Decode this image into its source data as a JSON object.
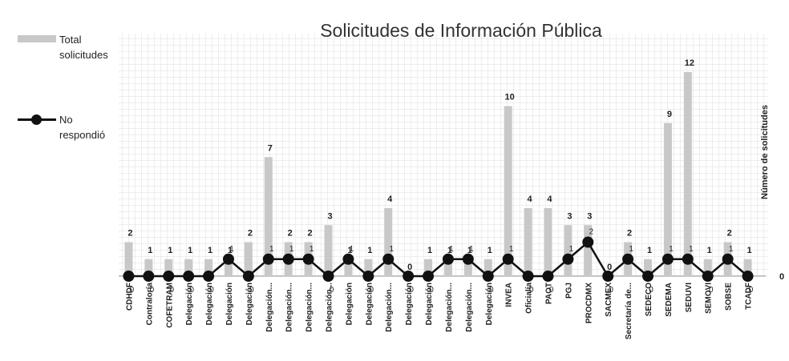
{
  "chart_data": {
    "type": "bar_line",
    "title": "Solicitudes de Información Pública",
    "y_label": "Número de solicitudes",
    "categories": [
      "CDHDF",
      "Contraloría",
      "COFETRAM",
      "Delegación",
      "Delegación",
      "Delegación",
      "Delegación",
      "Delegación...",
      "Delegación...",
      "Delegación...",
      "Delegación...",
      "Delegación",
      "Delegación",
      "Delegación...",
      "Delegación",
      "Delegación",
      "Delegación...",
      "Delegación...",
      "Delegación",
      "INVEA",
      "Oficialía",
      "PAOT",
      "PGJ",
      "PROCDMX",
      "SACMEX",
      "Secretaría de...",
      "SEDECO",
      "SEDEMA",
      "SEDUVI",
      "SEMOVI",
      "SOBSE",
      "TCADF"
    ],
    "series": [
      {
        "name": "Total solicitudes",
        "color": "#c8c8c8",
        "values": [
          2,
          1,
          1,
          1,
          1,
          1,
          2,
          7,
          2,
          2,
          3,
          1,
          1,
          4,
          0,
          1,
          1,
          1,
          1,
          10,
          4,
          4,
          3,
          3,
          0,
          2,
          1,
          9,
          12,
          1,
          2,
          1
        ]
      },
      {
        "name": "No respondió",
        "color": "#111111",
        "values": [
          0,
          0,
          0,
          0,
          0,
          1,
          0,
          1,
          1,
          1,
          0,
          1,
          0,
          1,
          0,
          0,
          1,
          1,
          0,
          1,
          0,
          0,
          1,
          2,
          0,
          1,
          0,
          1,
          1,
          0,
          1,
          0
        ]
      }
    ],
    "ylim": [
      0,
      12
    ],
    "yticks": [
      0
    ],
    "grid": true
  }
}
